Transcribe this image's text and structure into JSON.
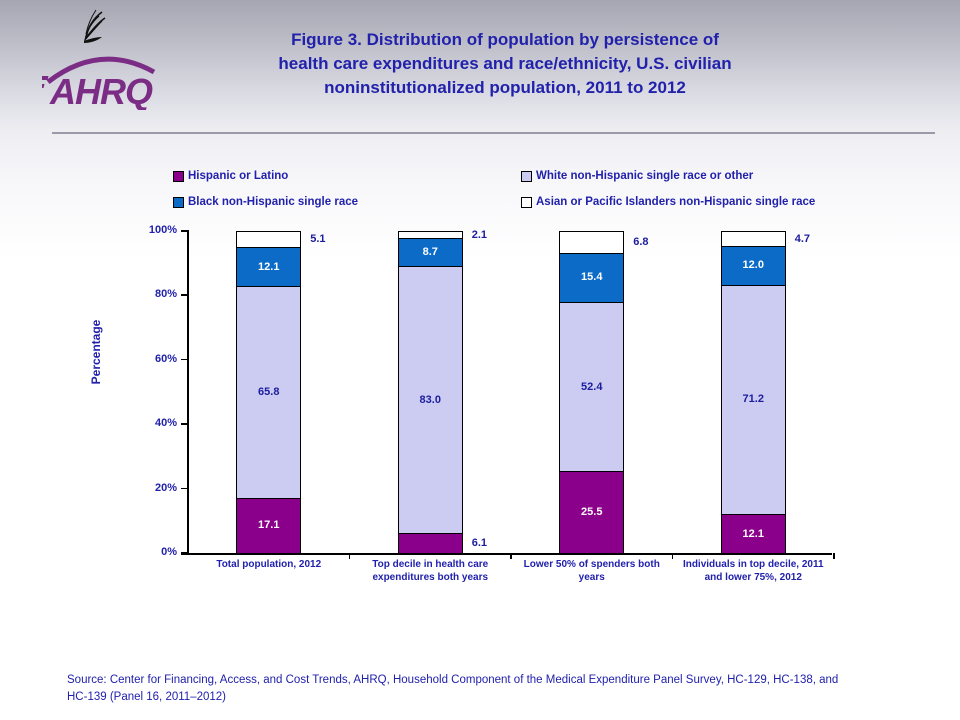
{
  "header": {
    "logo_text": "AHRQ",
    "title": "Figure 3. Distribution of population by persistence of\nhealth care expenditures and race/ethnicity, U.S. civilian\nnoninstitutionalized population, 2011 to 2012"
  },
  "legend": {
    "items": [
      {
        "label": "Hispanic or Latino",
        "color": "#8B008B"
      },
      {
        "label": "White non-Hispanic single race or other",
        "color": "#CCCCF2"
      },
      {
        "label": "Black non-Hispanic single race",
        "color": "#0B6BC7"
      },
      {
        "label": "Asian or Pacific Islanders non-Hispanic single race",
        "color": "#FFFFFF"
      }
    ]
  },
  "chart_data": {
    "type": "bar",
    "stacked": true,
    "title": "",
    "xlabel": "",
    "ylabel": "Percentage",
    "ylim": [
      0,
      100
    ],
    "yticks": [
      "0%",
      "20%",
      "40%",
      "60%",
      "80%",
      "100%"
    ],
    "legend_position": "top",
    "grid": false,
    "categories": [
      "Total population, 2012",
      "Top decile in health care\nexpenditures both years",
      "Lower 50% of spenders both\nyears",
      "Individuals in top decile, 2011\nand lower 75%, 2012"
    ],
    "series": [
      {
        "name": "Hispanic or Latino",
        "color": "#8B008B",
        "label_color": "#FFFFFF",
        "values": [
          17.1,
          6.1,
          25.5,
          12.1
        ]
      },
      {
        "name": "White non-Hispanic single race or other",
        "color": "#CCCCF2",
        "label_color": "#1C1C9E",
        "values": [
          65.8,
          83.0,
          52.4,
          71.2
        ]
      },
      {
        "name": "Black non-Hispanic single race",
        "color": "#0B6BC7",
        "label_color": "#FFFFFF",
        "values": [
          12.1,
          8.7,
          15.4,
          12.0
        ]
      },
      {
        "name": "Asian or Pacific Islanders non-Hispanic single race",
        "color": "#FFFFFF",
        "label_color": "#1C1C9E",
        "values": [
          5.1,
          2.1,
          6.8,
          4.7
        ]
      }
    ]
  },
  "footer": {
    "source": "Source: Center for Financing, Access, and Cost Trends, AHRQ,  Household Component of the Medical Expenditure Panel Survey,  HC-129, HC-138, and\nHC-139 (Panel 16, 2011–2012)"
  }
}
